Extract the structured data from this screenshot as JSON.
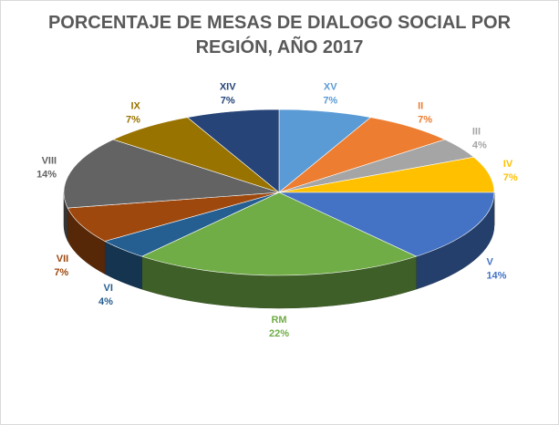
{
  "chart_data": {
    "type": "pie",
    "title_line1": "PORCENTAJE  DE MESAS DE DIALOGO SOCIAL POR",
    "title_line2": "REGIÓN, AÑO 2017",
    "slices": [
      {
        "label": "XV",
        "value": 7,
        "text": "7%",
        "color": "#5b9bd5",
        "label_color": "#5b9bd5"
      },
      {
        "label": "II",
        "value": 7,
        "text": "7%",
        "color": "#ed7d31",
        "label_color": "#ed7d31"
      },
      {
        "label": "III",
        "value": 4,
        "text": "4%",
        "color": "#a5a5a5",
        "label_color": "#a5a5a5"
      },
      {
        "label": "IV",
        "value": 7,
        "text": "7%",
        "color": "#ffc000",
        "label_color": "#ffc000"
      },
      {
        "label": "V",
        "value": 14,
        "text": "14%",
        "color": "#4472c4",
        "label_color": "#4472c4"
      },
      {
        "label": "RM",
        "value": 22,
        "text": "22%",
        "color": "#70ad47",
        "label_color": "#70ad47"
      },
      {
        "label": "VI",
        "value": 4,
        "text": "4%",
        "color": "#255e91",
        "label_color": "#255e91"
      },
      {
        "label": "VII",
        "value": 7,
        "text": "7%",
        "color": "#9e480e",
        "label_color": "#9e480e"
      },
      {
        "label": "VIII",
        "value": 14,
        "text": "14%",
        "color": "#636363",
        "label_color": "#636363"
      },
      {
        "label": "IX",
        "value": 7,
        "text": "7%",
        "color": "#997300",
        "label_color": "#997300"
      },
      {
        "label": "XIV",
        "value": 7,
        "text": "7%",
        "color": "#264478",
        "label_color": "#264478"
      }
    ]
  }
}
